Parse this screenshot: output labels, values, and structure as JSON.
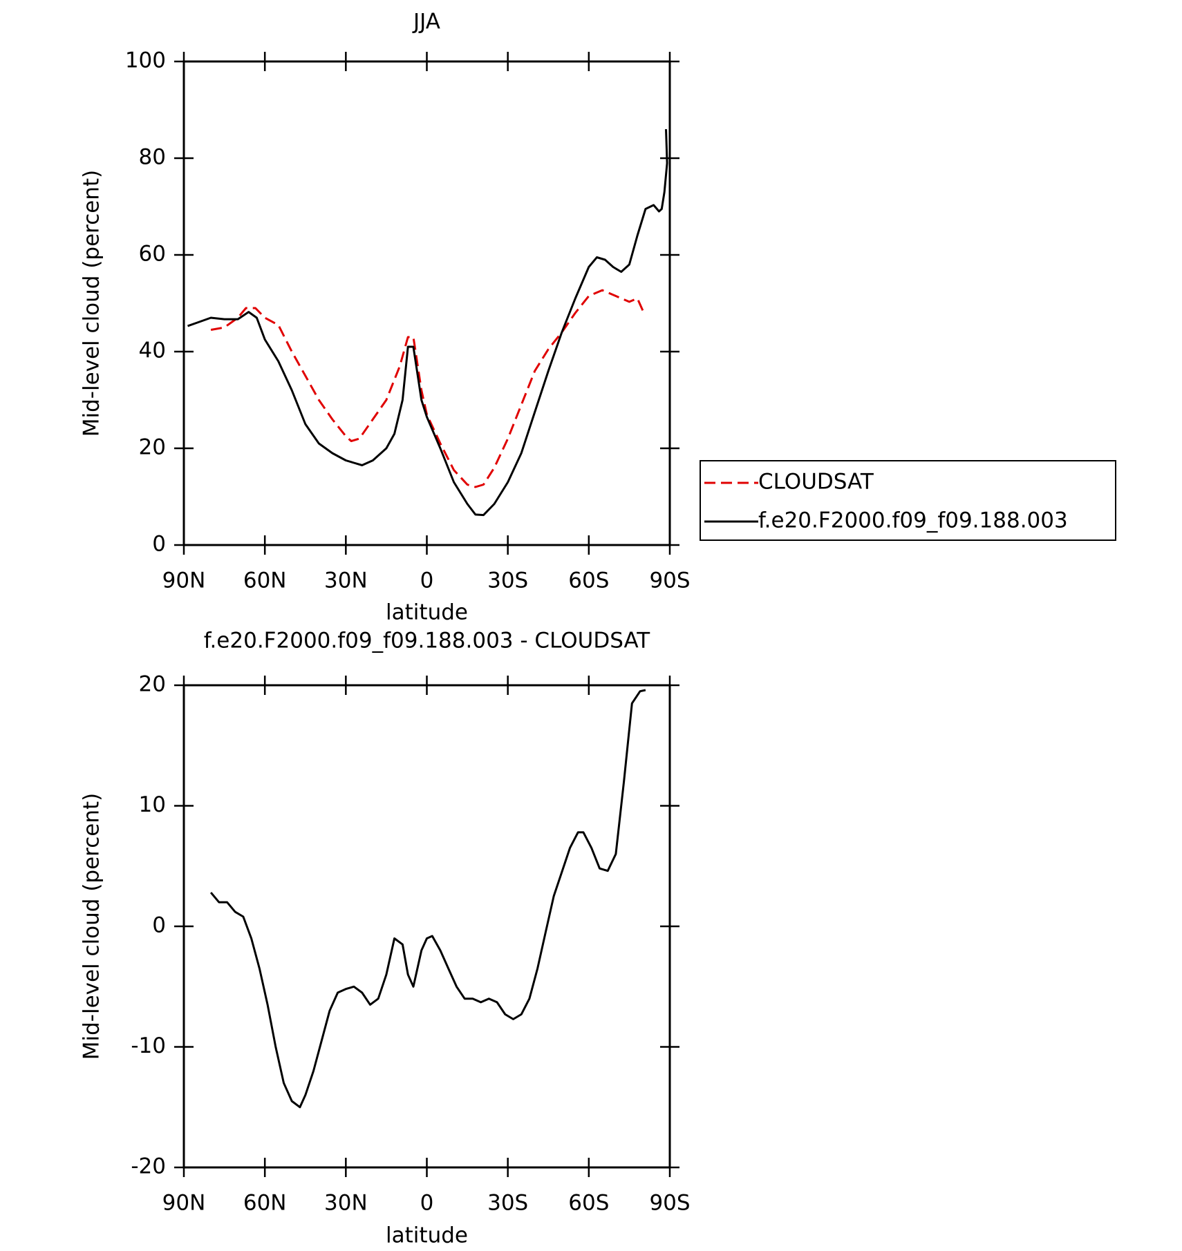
{
  "chart_data": [
    {
      "type": "line",
      "title": "JJA",
      "xlabel": "latitude",
      "ylabel": "Mid-level cloud (percent)",
      "xlim": [
        90,
        -90
      ],
      "xticks": [
        {
          "value": 90,
          "label": "90N"
        },
        {
          "value": 60,
          "label": "60N"
        },
        {
          "value": 30,
          "label": "30N"
        },
        0,
        {
          "value": -30,
          "label": "30S"
        },
        {
          "value": -60,
          "label": "60S"
        },
        {
          "value": -90,
          "label": "90S"
        }
      ],
      "ylim": [
        0,
        100
      ],
      "yticks": [
        0,
        20,
        40,
        60,
        80,
        100
      ],
      "legend": "right",
      "series": [
        {
          "name": "CLOUDSAT",
          "color": "#e00000",
          "dashed": true,
          "x": [
            80,
            75,
            70,
            67,
            63.5,
            60,
            55,
            50,
            45,
            40,
            35,
            30,
            28,
            25,
            20,
            15,
            10,
            7,
            5,
            2,
            0,
            -5,
            -10,
            -15,
            -18,
            -21,
            -25,
            -30,
            -35,
            -40,
            -45,
            -50,
            -55,
            -60,
            -65,
            -70,
            -75,
            -78,
            -80
          ],
          "values": [
            44.5,
            45,
            47,
            49,
            49,
            47,
            45.5,
            40,
            35,
            30,
            26,
            22.5,
            21.5,
            22,
            26,
            30,
            37,
            43,
            43,
            32,
            27,
            21,
            15.5,
            12.5,
            12,
            12.5,
            16,
            22,
            29,
            36,
            40.5,
            44,
            48,
            51.5,
            52.7,
            51.5,
            50.3,
            51,
            48.5
          ]
        },
        {
          "name": "f.e20.F2000.f09_f09.188.003",
          "color": "#000000",
          "dashed": false,
          "x": [
            88.6,
            85,
            80,
            75,
            70,
            66,
            63,
            60,
            55,
            50,
            45,
            40,
            35,
            30,
            27,
            24,
            20,
            15,
            12,
            9,
            7,
            5,
            2,
            0,
            -5,
            -10,
            -15,
            -18,
            -21,
            -25,
            -30,
            -35,
            -40,
            -45,
            -50,
            -55,
            -60,
            -63,
            -66,
            -69,
            -72,
            -75,
            -78,
            -81,
            -84,
            -86,
            -87,
            -88,
            -89,
            -88.6
          ],
          "values": [
            45.3,
            46,
            47,
            46.7,
            46.7,
            48.2,
            47,
            42.5,
            38,
            32,
            25,
            21,
            19,
            17.5,
            17,
            16.5,
            17.5,
            20,
            23,
            30,
            41,
            41,
            30,
            26.5,
            20,
            13,
            8.5,
            6.3,
            6.2,
            8.5,
            13,
            19,
            27.5,
            36,
            44,
            51,
            57.5,
            59.5,
            59,
            57.5,
            56.5,
            58,
            64,
            69.5,
            70.3,
            69,
            69.5,
            73,
            79,
            86
          ]
        }
      ]
    },
    {
      "type": "line",
      "title": "f.e20.F2000.f09_f09.188.003 - CLOUDSAT",
      "xlabel": "latitude",
      "ylabel": "Mid-level cloud (percent)",
      "xlim": [
        90,
        -90
      ],
      "xticks": [
        {
          "value": 90,
          "label": "90N"
        },
        {
          "value": 60,
          "label": "60N"
        },
        {
          "value": 30,
          "label": "30N"
        },
        0,
        {
          "value": -30,
          "label": "30S"
        },
        {
          "value": -60,
          "label": "60S"
        },
        {
          "value": -90,
          "label": "90S"
        }
      ],
      "ylim": [
        -20,
        20
      ],
      "yticks": [
        -20,
        -10,
        0,
        10,
        20
      ],
      "series": [
        {
          "color": "#000000",
          "dashed": false,
          "x": [
            80,
            77,
            74,
            71,
            68,
            65,
            62,
            59,
            56,
            53,
            50,
            47,
            45,
            42,
            39,
            36,
            33,
            30,
            27,
            24,
            21,
            18,
            15,
            12,
            9,
            7,
            5,
            2,
            0,
            -2,
            -5,
            -8,
            -11,
            -14,
            -17,
            -20,
            -23,
            -26,
            -29,
            -32,
            -35,
            -38,
            -41,
            -44,
            -47,
            -50,
            -53,
            -56,
            -58,
            -61,
            -64,
            -67,
            -70,
            -73,
            -76,
            -79,
            -81
          ],
          "values": [
            2.8,
            2,
            2,
            1.2,
            0.8,
            -1,
            -3.5,
            -6.5,
            -10,
            -13,
            -14.5,
            -15,
            -14,
            -12,
            -9.5,
            -7,
            -5.5,
            -5.2,
            -5,
            -5.5,
            -6.5,
            -6,
            -4,
            -1,
            -1.5,
            -4,
            -5,
            -2,
            -1,
            -0.8,
            -2,
            -3.5,
            -5,
            -6,
            -6,
            -6.3,
            -6,
            -6.3,
            -7.3,
            -7.7,
            -7.3,
            -6,
            -3.5,
            -0.5,
            2.5,
            4.5,
            6.5,
            7.8,
            7.8,
            6.5,
            4.8,
            4.6,
            6,
            12,
            18.5,
            19.5,
            19.6
          ]
        }
      ]
    }
  ]
}
